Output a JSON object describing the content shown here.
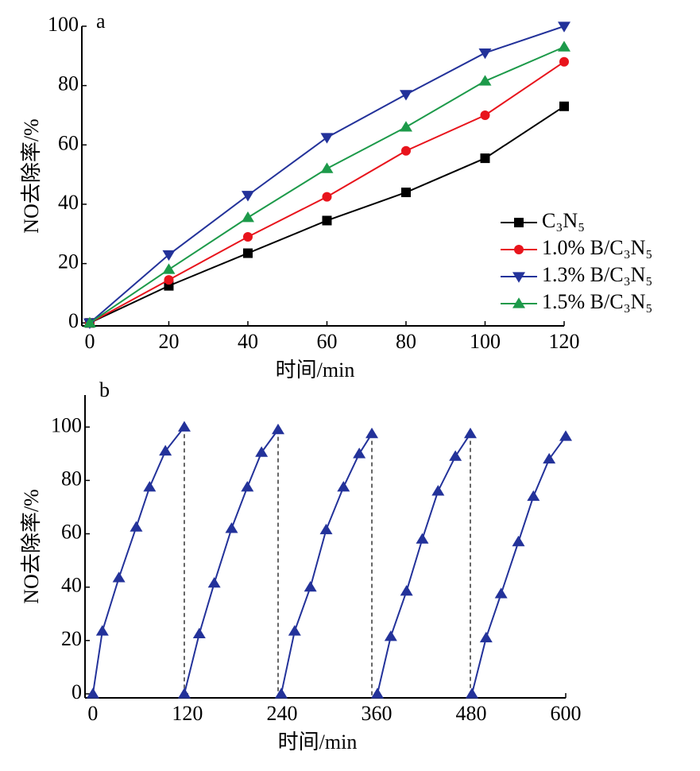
{
  "chart_data": [
    {
      "type": "line",
      "annotation": "a",
      "xlabel": "时间/min",
      "ylabel": "NO去除率/%",
      "x": [
        0,
        20,
        40,
        60,
        80,
        100,
        120
      ],
      "xlim": [
        -2,
        120
      ],
      "ylim": [
        -1,
        100
      ],
      "xticks": [
        0,
        20,
        40,
        60,
        80,
        100,
        120
      ],
      "yticks": [
        0,
        20,
        40,
        60,
        80,
        100
      ],
      "legend": "right",
      "series": [
        {
          "name": "C₃N₅",
          "color": "#000000",
          "marker": "square",
          "values": [
            0,
            12.5,
            23.5,
            34.5,
            44,
            55.5,
            73
          ]
        },
        {
          "name": "1.0% B/C₃N₅",
          "color": "#e8141c",
          "marker": "circle",
          "values": [
            0,
            14.5,
            29,
            42.5,
            58,
            70,
            88
          ]
        },
        {
          "name": "1.3% B/C₃N₅",
          "color": "#23329a",
          "marker": "triangle-down",
          "values": [
            0,
            23,
            43,
            62.5,
            77,
            91,
            100
          ]
        },
        {
          "name": "1.5% B/C₃N₅",
          "color": "#1d9a4a",
          "marker": "triangle-up",
          "values": [
            0,
            18,
            35.5,
            52,
            66,
            81.5,
            93
          ]
        }
      ]
    },
    {
      "type": "line",
      "annotation": "b",
      "xlabel": "时间/min",
      "ylabel": "NO去除率/%",
      "x": [
        0,
        12,
        33,
        55,
        72,
        92,
        116,
        null,
        116,
        135,
        154,
        176,
        196,
        214,
        235,
        null,
        239,
        256,
        276,
        296,
        318,
        338,
        354,
        null,
        361,
        378,
        398,
        418,
        438,
        460,
        479,
        null,
        481,
        499,
        518,
        540,
        559,
        579,
        600
      ],
      "xlim": [
        -10,
        600
      ],
      "ylim": [
        -1.5,
        112
      ],
      "xticks": [
        0,
        120,
        240,
        360,
        480,
        600
      ],
      "yticks": [
        0,
        20,
        40,
        60,
        80,
        100
      ],
      "cycle_breaks": true,
      "series": [
        {
          "color": "#23329a",
          "marker": "triangle-up",
          "values": [
            0,
            23.5,
            43.5,
            62.5,
            77.5,
            91,
            100,
            null,
            0,
            22.5,
            41.5,
            62,
            77.5,
            90.5,
            99,
            null,
            0,
            23.5,
            40,
            61.5,
            77.5,
            90,
            97.5,
            null,
            0,
            21.5,
            38.5,
            58,
            76,
            89,
            97.5,
            null,
            0,
            21,
            37.5,
            57,
            74,
            88,
            96.5
          ]
        }
      ]
    }
  ]
}
